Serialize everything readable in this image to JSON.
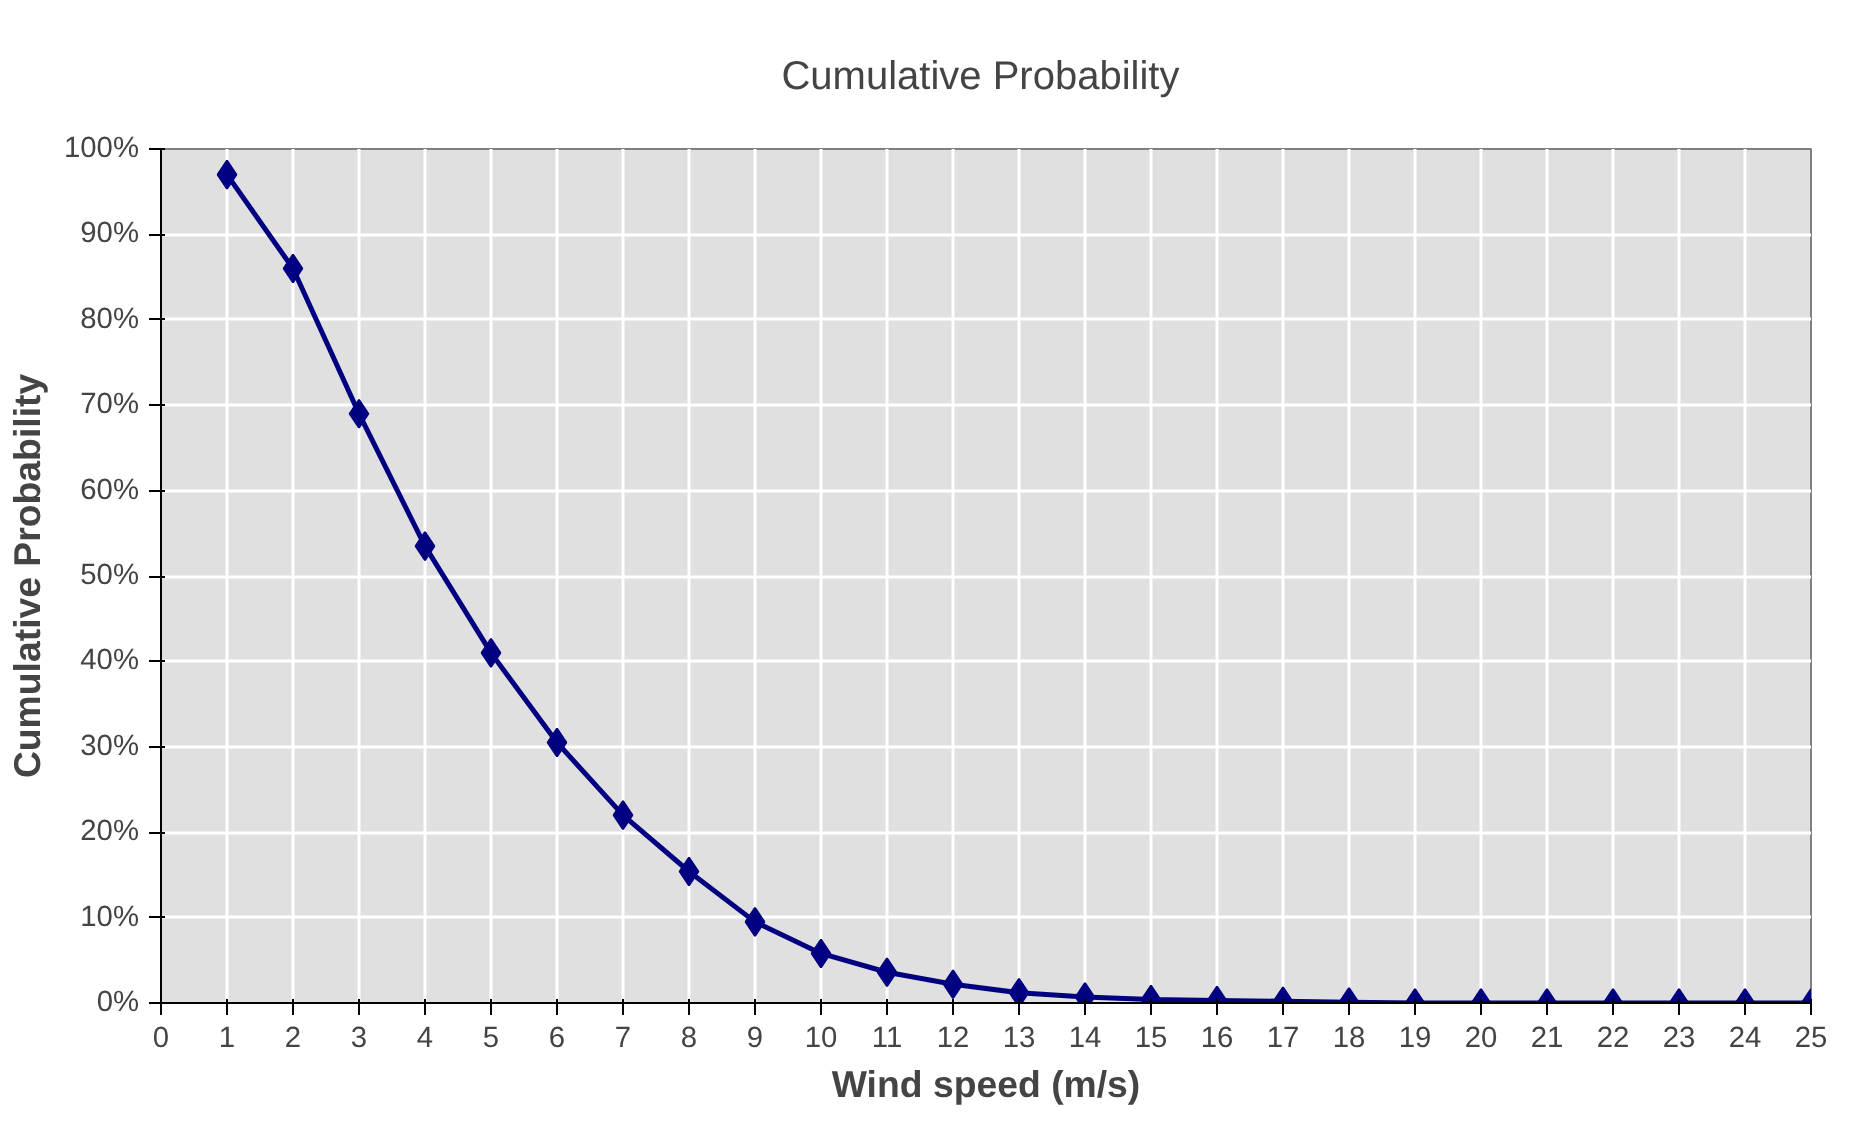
{
  "chart_data": {
    "type": "line",
    "title": "Cumulative  Probability",
    "xlabel": "Wind speed (m/s)",
    "ylabel": "Cumulative Probability",
    "x": [
      1,
      2,
      3,
      4,
      5,
      6,
      7,
      8,
      9,
      10,
      11,
      12,
      13,
      14,
      15,
      16,
      17,
      18,
      19,
      20,
      21,
      22,
      23,
      24,
      25
    ],
    "series": [
      {
        "color": "#000080",
        "values": [
          97,
          86,
          69,
          53.5,
          41,
          30.5,
          22,
          15.4,
          9.5,
          5.8,
          3.6,
          2.2,
          1.2,
          0.7,
          0.4,
          0.3,
          0.2,
          0.1,
          0,
          0,
          0,
          0,
          0,
          0,
          0
        ]
      }
    ],
    "xlim": [
      0,
      25
    ],
    "xticks": [
      0,
      1,
      2,
      3,
      4,
      5,
      6,
      7,
      8,
      9,
      10,
      11,
      12,
      13,
      14,
      15,
      16,
      17,
      18,
      19,
      20,
      21,
      22,
      23,
      24,
      25
    ],
    "ylim": [
      0,
      100
    ],
    "yticks": [
      {
        "value": 0,
        "label": "0%"
      },
      {
        "value": 10,
        "label": "10%"
      },
      {
        "value": 20,
        "label": "20%"
      },
      {
        "value": 30,
        "label": "30%"
      },
      {
        "value": 40,
        "label": "40%"
      },
      {
        "value": 50,
        "label": "50%"
      },
      {
        "value": 60,
        "label": "60%"
      },
      {
        "value": 70,
        "label": "70%"
      },
      {
        "value": 80,
        "label": "80%"
      },
      {
        "value": 90,
        "label": "90%"
      },
      {
        "value": 100,
        "label": "100%"
      }
    ],
    "grid": true,
    "marker": "diamond",
    "line_style": "solid"
  }
}
